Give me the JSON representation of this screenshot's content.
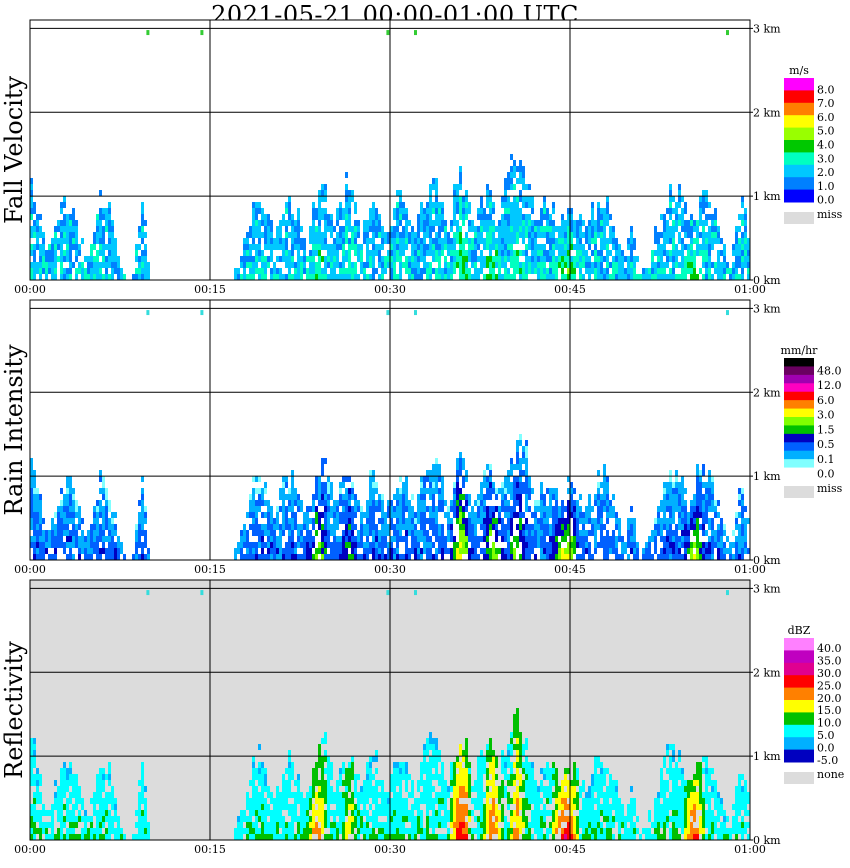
{
  "title": "2021-05-21   00:00-01:00 UTC",
  "chart_data": [
    {
      "type": "heatmap",
      "ylabel": "Fall Velocity",
      "x_ticks": [
        "00:00",
        "00:15",
        "00:30",
        "00:45",
        "01:00"
      ],
      "y_ticks": [
        "0 km",
        "1 km",
        "2 km",
        "3 km"
      ],
      "xlim": [
        0,
        60
      ],
      "ylim_km": [
        0,
        3.1
      ],
      "colorbar": {
        "unit": "m/s",
        "labels": [
          "8.0",
          "7.0",
          "6.0",
          "5.0",
          "4.0",
          "3.0",
          "2.0",
          "1.0",
          "0.0"
        ],
        "colors": [
          "#ff00ff",
          "#ff0000",
          "#ff7f00",
          "#ffff00",
          "#99ff00",
          "#00c800",
          "#00ffc0",
          "#00c8ff",
          "#0080ff",
          "#0000ff"
        ],
        "missing_label": "miss",
        "missing_color": "#dcdcdc"
      },
      "background": "#ffffff"
    },
    {
      "type": "heatmap",
      "ylabel": "Rain Intensity",
      "x_ticks": [
        "00:00",
        "00:15",
        "00:30",
        "00:45",
        "01:00"
      ],
      "y_ticks": [
        "0 km",
        "1 km",
        "2 km",
        "3 km"
      ],
      "xlim": [
        0,
        60
      ],
      "ylim_km": [
        0,
        3.1
      ],
      "colorbar": {
        "unit": "mm/hr",
        "labels": [
          "48.0",
          "12.0",
          "6.0",
          "3.0",
          "1.5",
          "0.5",
          "0.1",
          "0.0"
        ],
        "colors": [
          "#000000",
          "#6a0060",
          "#a000b0",
          "#ff00c0",
          "#ff0000",
          "#ff8000",
          "#ffff00",
          "#80ff00",
          "#00c000",
          "#0000c0",
          "#0060ff",
          "#00b0ff",
          "#80ffff",
          "#ffffff"
        ],
        "missing_label": "miss",
        "missing_color": "#dcdcdc"
      },
      "background": "#ffffff"
    },
    {
      "type": "heatmap",
      "ylabel": "Reflectivity",
      "x_ticks": [
        "00:00",
        "00:15",
        "00:30",
        "00:45",
        "01:00"
      ],
      "y_ticks": [
        "0 km",
        "1 km",
        "2 km",
        "3 km"
      ],
      "xlim": [
        0,
        60
      ],
      "ylim_km": [
        0,
        3.1
      ],
      "colorbar": {
        "unit": "dBZ",
        "labels": [
          "40.0",
          "35.0",
          "30.0",
          "25.0",
          "20.0",
          "15.0",
          "10.0",
          "5.0",
          "0.0",
          "-5.0"
        ],
        "colors": [
          "#ff80ff",
          "#c000c0",
          "#e00090",
          "#ff0000",
          "#ff8000",
          "#ffff00",
          "#00c000",
          "#00ffff",
          "#00b0ff",
          "#0000c0",
          "#ffffff"
        ],
        "missing_label": "none",
        "missing_color": "#dcdcdc"
      },
      "background": "#dcdcdc"
    }
  ]
}
